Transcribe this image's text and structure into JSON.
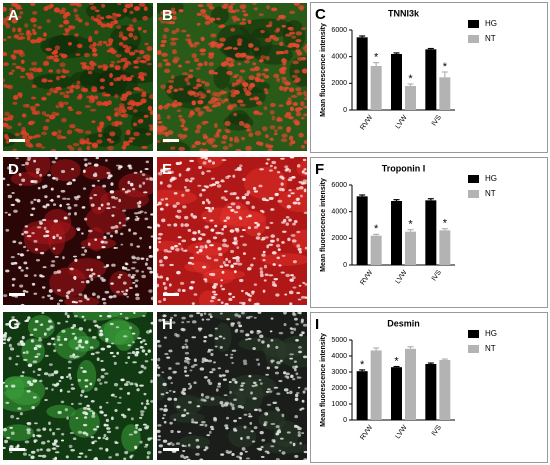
{
  "panels": {
    "labels": [
      "A",
      "B",
      "D",
      "E",
      "G",
      "H"
    ]
  },
  "chart_data": [
    {
      "type": "bar",
      "panel_label": "C",
      "title": "TNNI3k",
      "y_label": "Mean fluorescence intensity",
      "categories": [
        "RVW",
        "LVW",
        "IVS"
      ],
      "series": [
        {
          "name": "HG",
          "color": "#000000",
          "values": [
            5450,
            4200,
            4550
          ],
          "errors": [
            100,
            80,
            60
          ],
          "significance": [
            null,
            null,
            null
          ]
        },
        {
          "name": "NT",
          "color": "#b3b3b3",
          "values": [
            3300,
            1800,
            2450
          ],
          "errors": [
            250,
            150,
            400
          ],
          "significance": [
            "*",
            "*",
            "*"
          ]
        }
      ],
      "ylim": [
        0,
        6000
      ],
      "yticks": [
        0,
        2000,
        4000,
        6000
      ]
    },
    {
      "type": "bar",
      "panel_label": "F",
      "title": "Troponin I",
      "y_label": "Mean fluorescence intensity",
      "categories": [
        "RVW",
        "LVW",
        "IVS"
      ],
      "series": [
        {
          "name": "HG",
          "color": "#000000",
          "values": [
            5150,
            4800,
            4850
          ],
          "errors": [
            100,
            100,
            120
          ],
          "significance": [
            null,
            null,
            null
          ]
        },
        {
          "name": "NT",
          "color": "#b3b3b3",
          "values": [
            2200,
            2500,
            2600
          ],
          "errors": [
            100,
            150,
            120
          ],
          "significance": [
            "*",
            "*",
            "*"
          ]
        }
      ],
      "ylim": [
        0,
        6000
      ],
      "yticks": [
        0,
        2000,
        4000,
        6000
      ]
    },
    {
      "type": "bar",
      "panel_label": "I",
      "title": "Desmin",
      "y_label": "Mean fluorescence intensity",
      "categories": [
        "RVW",
        "LVW",
        "IVS"
      ],
      "series": [
        {
          "name": "HG",
          "color": "#000000",
          "values": [
            3050,
            3300,
            3500
          ],
          "errors": [
            80,
            40,
            60
          ],
          "significance": [
            "*",
            "*",
            null
          ]
        },
        {
          "name": "NT",
          "color": "#b3b3b3",
          "values": [
            4350,
            4450,
            3750
          ],
          "errors": [
            150,
            130,
            60
          ],
          "significance": [
            null,
            null,
            null
          ]
        }
      ],
      "ylim": [
        0,
        5000
      ],
      "yticks": [
        0,
        1000,
        2000,
        3000,
        4000,
        5000
      ]
    }
  ]
}
